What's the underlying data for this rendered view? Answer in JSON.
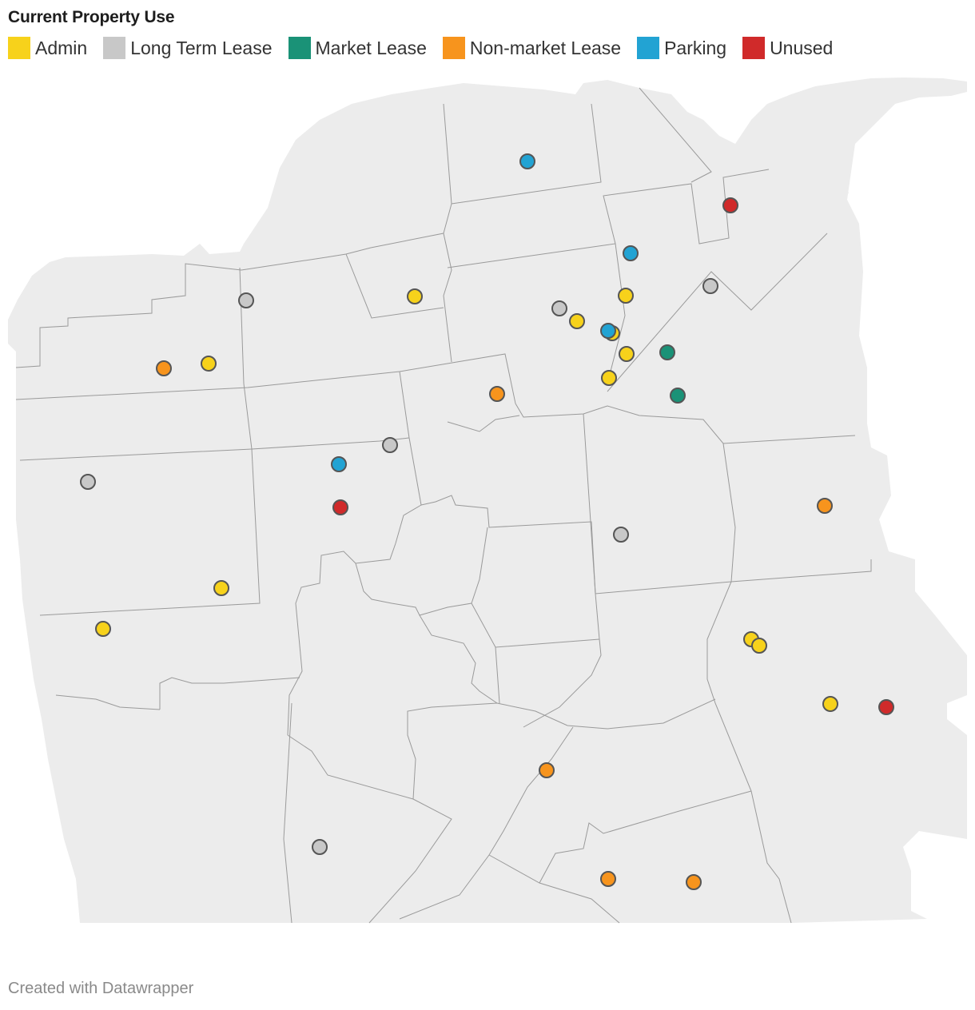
{
  "title": "Current Property Use",
  "legend": [
    {
      "label": "Admin",
      "key": "admin"
    },
    {
      "label": "Long Term Lease",
      "key": "ltl"
    },
    {
      "label": "Market Lease",
      "key": "market"
    },
    {
      "label": "Non-market Lease",
      "key": "nonmarket"
    },
    {
      "label": "Parking",
      "key": "parking"
    },
    {
      "label": "Unused",
      "key": "unused"
    }
  ],
  "colors": {
    "admin": "#f7d21b",
    "ltl": "#c8c8c8",
    "market": "#1a9277",
    "nonmarket": "#f7941d",
    "parking": "#22a3d3",
    "unused": "#d02a2a",
    "land": "#ececec",
    "boundary": "#9a9a9a"
  },
  "footer": "Created with Datawrapper"
}
